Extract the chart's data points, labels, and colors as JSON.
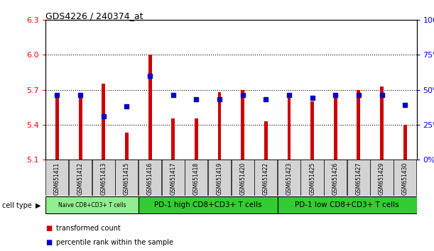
{
  "title": "GDS4226 / 240374_at",
  "samples": [
    "GSM651411",
    "GSM651412",
    "GSM651413",
    "GSM651415",
    "GSM651416",
    "GSM651417",
    "GSM651418",
    "GSM651419",
    "GSM651420",
    "GSM651422",
    "GSM651423",
    "GSM651425",
    "GSM651426",
    "GSM651427",
    "GSM651429",
    "GSM651430"
  ],
  "transformed_count": [
    5.67,
    5.67,
    5.75,
    5.33,
    6.0,
    5.45,
    5.45,
    5.68,
    5.7,
    5.43,
    5.65,
    5.6,
    5.65,
    5.7,
    5.73,
    5.4
  ],
  "percentile_rank": [
    46,
    46,
    31,
    38,
    60,
    46,
    43,
    43,
    46,
    43,
    46,
    44,
    46,
    46,
    46,
    39
  ],
  "y_min": 5.1,
  "y_max": 6.3,
  "y_ticks": [
    5.1,
    5.4,
    5.7,
    6.0,
    6.3
  ],
  "y_right_ticks": [
    0,
    25,
    50,
    75,
    100
  ],
  "bar_color": "#cc0000",
  "dot_color": "#0000cc",
  "cell_type_groups": [
    {
      "label": "Naive CD8+CD3+ T cells",
      "start": 0,
      "end": 4,
      "color": "#90ee90"
    },
    {
      "label": "PD-1 high CD8+CD3+ T cells",
      "start": 4,
      "end": 10,
      "color": "#33cc33"
    },
    {
      "label": "PD-1 low CD8+CD3+ T cells",
      "start": 10,
      "end": 16,
      "color": "#33cc33"
    }
  ],
  "cell_type_label": "cell type",
  "legend_items": [
    {
      "label": "transformed count",
      "color": "#cc0000"
    },
    {
      "label": "percentile rank within the sample",
      "color": "#0000cc"
    }
  ],
  "bar_width": 0.15
}
